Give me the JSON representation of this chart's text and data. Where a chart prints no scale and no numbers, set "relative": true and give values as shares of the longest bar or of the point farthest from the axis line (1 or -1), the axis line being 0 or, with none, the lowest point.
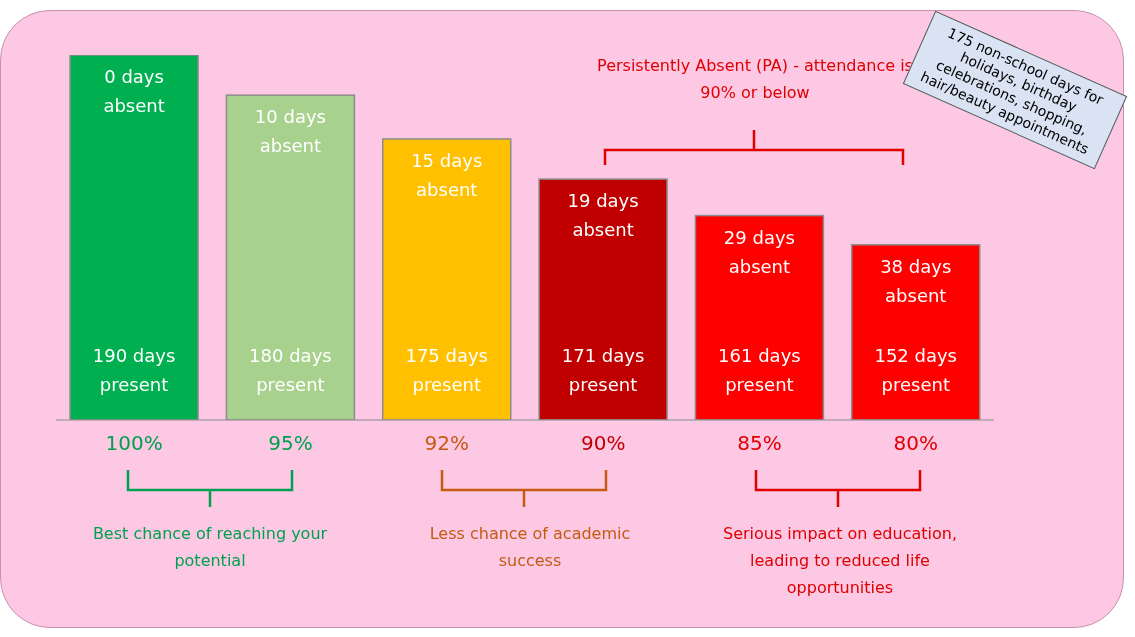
{
  "chart_data": {
    "type": "bar",
    "relative": true,
    "categories": [
      "100%",
      "95%",
      "92%",
      "90%",
      "85%",
      "80%"
    ],
    "values": [
      1,
      0.89,
      0.77,
      0.66,
      0.56,
      0.48
    ],
    "colors": [
      "#00b050",
      "#a9d18e",
      "#ffc000",
      "#c00000",
      "#ff0000",
      "#ff0000"
    ],
    "annotations": [
      "0 days absent",
      "190 days present",
      "10 days absent",
      "180 days present",
      "15 days absent",
      "175 days present",
      "19 days absent",
      "171 days present",
      "29 days absent",
      "161 days present",
      "38 days absent",
      "152 days present",
      "Persistently Absent (PA) - attendance is 90% or below",
      "175 non-school days for holidays, birthday celebrations, shopping, hair/beauty appointments",
      "Best chance of reaching your potential",
      "Less chance of academic success",
      "Serious impact on education, leading to reduced life opportunities"
    ]
  }
}
